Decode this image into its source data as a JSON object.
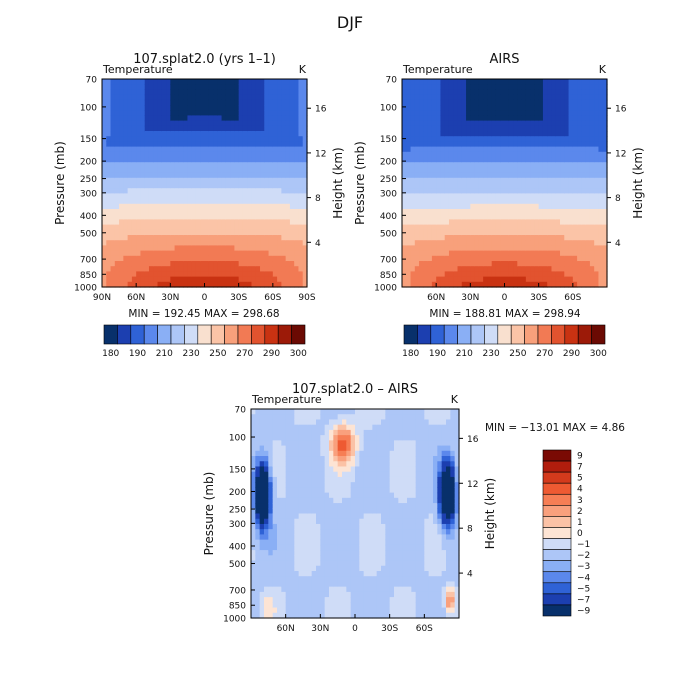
{
  "figure_title": "DJF",
  "chart_data": [
    {
      "type": "heatmap",
      "panel": "model",
      "title": "107.splat2.0 (yrs 1–1)",
      "field": "Temperature",
      "units": "K",
      "ylabel": "Pressure (mb)",
      "ylabel_right": "Height (km)",
      "pressure_ticks": [
        "70",
        "100",
        "150",
        "200",
        "250",
        "300",
        "400",
        "500",
        "700",
        "850",
        "1000"
      ],
      "height_ticks": [
        "4",
        "8",
        "12",
        "16"
      ],
      "x_ticks": [
        "90N",
        "60N",
        "30N",
        "0",
        "30S",
        "60S",
        "90S"
      ],
      "min_label": "MIN = 192.45",
      "max_label": "MAX = 298.68",
      "min": 192.45,
      "max": 298.68,
      "colorbar_labels": [
        "180",
        "190",
        "210",
        "230",
        "250",
        "270",
        "290",
        "300"
      ]
    },
    {
      "type": "heatmap",
      "panel": "obs",
      "title": "AIRS",
      "field": "Temperature",
      "units": "K",
      "ylabel": "Pressure (mb)",
      "ylabel_right": "Height (km)",
      "pressure_ticks": [
        "70",
        "100",
        "150",
        "200",
        "250",
        "300",
        "400",
        "500",
        "700",
        "850",
        "1000"
      ],
      "height_ticks": [
        "4",
        "8",
        "12",
        "16"
      ],
      "x_ticks": [
        "60N",
        "30N",
        "0",
        "30S",
        "60S"
      ],
      "min_label": "MIN = 188.81",
      "max_label": "MAX = 298.94",
      "min": 188.81,
      "max": 298.94,
      "colorbar_labels": [
        "180",
        "190",
        "210",
        "230",
        "250",
        "270",
        "290",
        "300"
      ]
    },
    {
      "type": "heatmap",
      "panel": "diff",
      "title": "107.splat2.0 – AIRS",
      "field": "Temperature",
      "units": "K",
      "ylabel": "Pressure (mb)",
      "ylabel_right": "Height (km)",
      "pressure_ticks": [
        "70",
        "100",
        "150",
        "200",
        "250",
        "300",
        "400",
        "500",
        "700",
        "850",
        "1000"
      ],
      "height_ticks": [
        "4",
        "8",
        "12",
        "16"
      ],
      "x_ticks": [
        "60N",
        "30N",
        "0",
        "30S",
        "60S"
      ],
      "minmax_label": "MIN = −13.01  MAX =   4.86",
      "min": -13.01,
      "max": 4.86,
      "colorbar_labels": [
        "9",
        "7",
        "5",
        "4",
        "3",
        "2",
        "1",
        "0",
        "−1",
        "−2",
        "−3",
        "−4",
        "−5",
        "−7",
        "−9"
      ]
    }
  ],
  "colors": {
    "full_scale": [
      "#08306b",
      "#1c3fb0",
      "#2f62d6",
      "#5b88ec",
      "#8aaff5",
      "#adc6f7",
      "#cfdcf7",
      "#f9e0cf",
      "#fbc4a7",
      "#f8a07b",
      "#f27a54",
      "#e2532f",
      "#c93212",
      "#9c1a08",
      "#6b0a03"
    ],
    "diff_scale": [
      "#7a0a04",
      "#b11d0d",
      "#d43a1c",
      "#ee5a32",
      "#f67e55",
      "#f9a07d",
      "#fbc2a6",
      "#fde4d4",
      "#cfdcf7",
      "#adc6f7",
      "#8aaff5",
      "#5b88ec",
      "#2f62d6",
      "#1c3fb0",
      "#08306b"
    ]
  }
}
